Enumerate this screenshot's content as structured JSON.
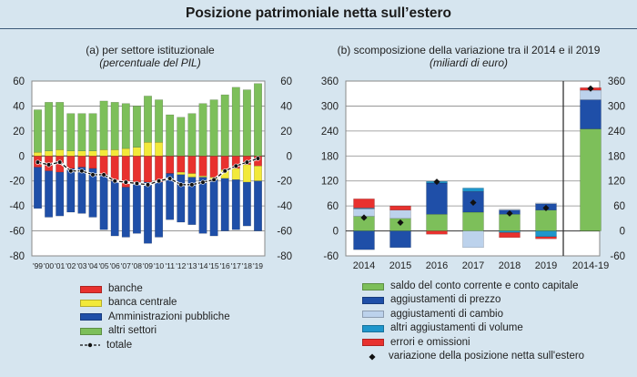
{
  "title": "Posizione patrimoniale netta sull’estero",
  "chart_data": [
    {
      "type": "bar",
      "id": "a",
      "title": "(a) per settore istituzionale",
      "subtitle": "(percentuale del PIL)",
      "stacked": true,
      "categories": [
        "'99",
        "'00",
        "'01",
        "'02",
        "'03",
        "'04",
        "'05",
        "'06",
        "'07",
        "'08",
        "'09",
        "'10",
        "'11",
        "'12",
        "'13",
        "'14",
        "'15",
        "'16",
        "'17",
        "'18",
        "'19"
      ],
      "ylim": [
        -80,
        60
      ],
      "yticks": [
        60,
        40,
        20,
        0,
        -20,
        -40,
        -60,
        -80
      ],
      "grid": true,
      "series": [
        {
          "name": "banche",
          "color": "#e8312e",
          "values": [
            -9,
            -12,
            -13,
            -10,
            -9,
            -10,
            -15,
            -20,
            -25,
            -21,
            -21,
            -21,
            -14,
            -13,
            -14,
            -16,
            -17,
            -11,
            -10,
            -7,
            -8
          ]
        },
        {
          "name": "banca centrale",
          "color": "#f2e93a",
          "values": [
            3,
            4,
            5,
            4,
            4,
            4,
            5,
            5,
            6,
            7,
            11,
            11,
            0,
            -2,
            -3,
            -1,
            -2,
            -7,
            -9,
            -14,
            -12
          ]
        },
        {
          "name": "Amministrazioni pubbliche",
          "color": "#1f4fa8",
          "values": [
            -33,
            -37,
            -35,
            -35,
            -37,
            -39,
            -44,
            -44,
            -40,
            -41,
            -49,
            -44,
            -37,
            -38,
            -38,
            -45,
            -45,
            -42,
            -40,
            -35,
            -40
          ]
        },
        {
          "name": "altri settori",
          "color": "#7dbf5a",
          "values": [
            34,
            39,
            38,
            30,
            30,
            30,
            39,
            38,
            36,
            33,
            37,
            34,
            33,
            31,
            34,
            42,
            45,
            49,
            55,
            53,
            58
          ]
        }
      ],
      "line": {
        "name": "totale",
        "color": "#111111",
        "values": [
          -5,
          -7,
          -5,
          -12,
          -12,
          -15,
          -15,
          -20,
          -21,
          -22,
          -23,
          -20,
          -18,
          -23,
          -23,
          -21,
          -19,
          -12,
          -8,
          -5,
          -2
        ]
      }
    },
    {
      "type": "bar",
      "id": "b",
      "title": "(b) scomposizione della variazione tra il 2014 e il 2019",
      "subtitle": "(miliardi di euro)",
      "stacked": true,
      "categories": [
        "2014",
        "2015",
        "2016",
        "2017",
        "2018",
        "2019",
        "2014-19"
      ],
      "ylim": [
        -60,
        360
      ],
      "yticks": [
        360,
        300,
        240,
        180,
        120,
        60,
        0,
        -60
      ],
      "grid": true,
      "series": [
        {
          "name": "saldo del conto corrente e conto capitale",
          "color": "#7dbf5a",
          "values": [
            35,
            30,
            40,
            45,
            40,
            50,
            245
          ]
        },
        {
          "name": "aggiustamenti di prezzo",
          "color": "#1f4fa8",
          "values": [
            -45,
            -40,
            75,
            50,
            10,
            15,
            70
          ]
        },
        {
          "name": "aggiustamenti di cambio",
          "color": "#bcd2ec",
          "values": [
            18,
            20,
            0,
            -40,
            2,
            2,
            23
          ]
        },
        {
          "name": "altri aggiustamenti di volume",
          "color": "#1e96cc",
          "values": [
            2,
            0,
            4,
            8,
            -4,
            -14,
            0
          ]
        },
        {
          "name": "errori e omissioni",
          "color": "#e8312e",
          "values": [
            22,
            10,
            -8,
            0,
            -12,
            -5,
            6
          ]
        }
      ],
      "markers": {
        "name": "variazione della posizione netta sull'estero",
        "color": "#111111",
        "values": [
          32,
          20,
          118,
          68,
          42,
          55,
          342
        ]
      }
    }
  ],
  "legend_a": [
    {
      "label": "banche",
      "color": "#e8312e"
    },
    {
      "label": "banca centrale",
      "color": "#f2e93a"
    },
    {
      "label": "Amministrazioni pubbliche",
      "color": "#1f4fa8"
    },
    {
      "label": "altri settori",
      "color": "#7dbf5a"
    },
    {
      "label": "totale"
    }
  ],
  "legend_b": [
    {
      "label": "saldo del conto corrente e conto capitale",
      "color": "#7dbf5a"
    },
    {
      "label": "aggiustamenti di prezzo",
      "color": "#1f4fa8"
    },
    {
      "label": "aggiustamenti di cambio",
      "color": "#bcd2ec"
    },
    {
      "label": "altri aggiustamenti di volume",
      "color": "#1e96cc"
    },
    {
      "label": "errori e omissioni",
      "color": "#e8312e"
    },
    {
      "label": "variazione della posizione netta sull'estero"
    }
  ]
}
